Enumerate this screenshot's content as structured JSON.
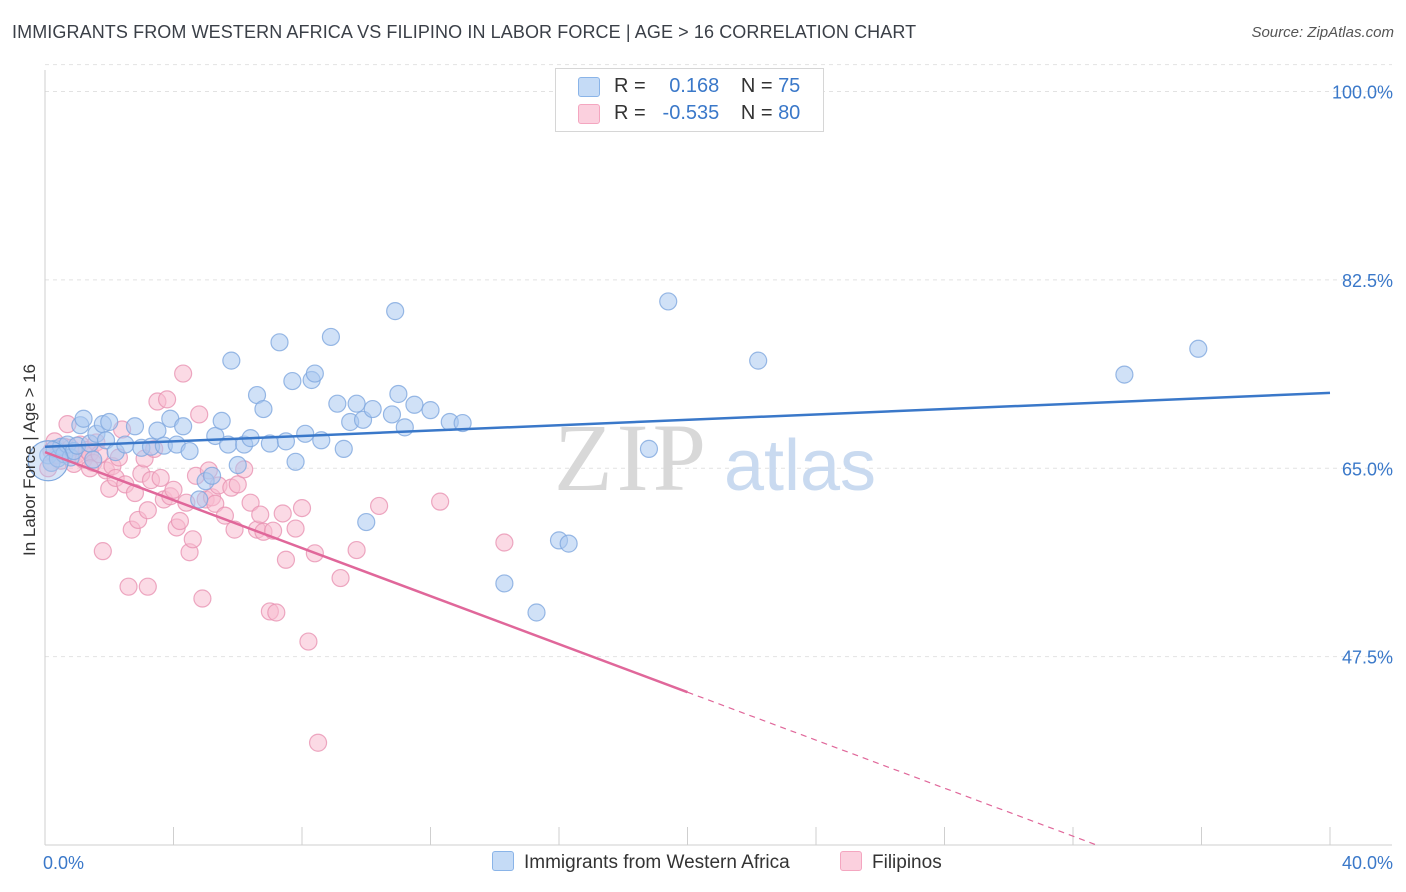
{
  "header": {
    "title": "IMMIGRANTS FROM WESTERN AFRICA VS FILIPINO IN LABOR FORCE | AGE > 16 CORRELATION CHART",
    "source": "Source: ZipAtlas.com"
  },
  "watermark": {
    "zip": "ZIP",
    "atlas": "atlas"
  },
  "legend_top": [
    {
      "r_label": "R =",
      "r_value": "0.168",
      "n_label": "N =",
      "n_value": "75",
      "color": "#8ab4e8"
    },
    {
      "r_label": "R =",
      "r_value": "-0.535",
      "n_label": "N =",
      "n_value": "80",
      "color": "#f4a6c0"
    }
  ],
  "colors": {
    "blue": "#3a78c9",
    "pink": "#e0679a",
    "blue_fill": "#aac8f0",
    "pink_fill": "#f8bcd0"
  },
  "chart_data": {
    "type": "scatter",
    "title": "IMMIGRANTS FROM WESTERN AFRICA VS FILIPINO IN LABOR FORCE | AGE > 16 CORRELATION CHART",
    "xlabel": "",
    "ylabel": "In Labor Force | Age > 16",
    "xlim": [
      0,
      40
    ],
    "ylim": [
      30,
      102
    ],
    "x_tick_labels": [
      "0.0%",
      "40.0%"
    ],
    "y_ticks": [
      100,
      82.5,
      65,
      47.5
    ],
    "y_tick_labels": [
      "100.0%",
      "82.5%",
      "65.0%",
      "47.5%"
    ],
    "grid": true,
    "legend_placement": "top-center",
    "series": [
      {
        "name": "Immigrants from Western Africa",
        "color": "#3a78c9",
        "points": [
          [
            0.1,
            66.2
          ],
          [
            0.2,
            65.5
          ],
          [
            0.3,
            66.8
          ],
          [
            0.4,
            65.9
          ],
          [
            0.5,
            67.0
          ],
          [
            0.6,
            66.3
          ],
          [
            0.7,
            67.2
          ],
          [
            0.8,
            66.0
          ],
          [
            0.9,
            66.6
          ],
          [
            1.0,
            67.1
          ],
          [
            1.1,
            69.0
          ],
          [
            1.2,
            69.6
          ],
          [
            1.4,
            67.3
          ],
          [
            1.5,
            65.8
          ],
          [
            1.6,
            68.2
          ],
          [
            1.8,
            69.1
          ],
          [
            1.9,
            67.6
          ],
          [
            2.0,
            69.3
          ],
          [
            2.2,
            66.5
          ],
          [
            2.5,
            67.2
          ],
          [
            2.8,
            68.9
          ],
          [
            3.0,
            66.9
          ],
          [
            3.3,
            67.0
          ],
          [
            3.5,
            68.5
          ],
          [
            3.7,
            67.1
          ],
          [
            3.9,
            69.6
          ],
          [
            4.1,
            67.2
          ],
          [
            4.3,
            68.9
          ],
          [
            4.5,
            66.6
          ],
          [
            4.8,
            62.1
          ],
          [
            5.0,
            63.8
          ],
          [
            5.2,
            64.3
          ],
          [
            5.3,
            68.0
          ],
          [
            5.5,
            69.4
          ],
          [
            5.7,
            67.2
          ],
          [
            5.8,
            75.0
          ],
          [
            6.0,
            65.3
          ],
          [
            6.2,
            67.2
          ],
          [
            6.4,
            67.8
          ],
          [
            6.6,
            71.8
          ],
          [
            6.8,
            70.5
          ],
          [
            7.0,
            67.3
          ],
          [
            7.3,
            76.7
          ],
          [
            7.5,
            67.5
          ],
          [
            7.7,
            73.1
          ],
          [
            7.8,
            65.6
          ],
          [
            8.1,
            68.2
          ],
          [
            8.3,
            73.2
          ],
          [
            8.4,
            73.8
          ],
          [
            8.6,
            67.6
          ],
          [
            8.9,
            77.2
          ],
          [
            9.1,
            71.0
          ],
          [
            9.3,
            66.8
          ],
          [
            9.5,
            69.3
          ],
          [
            9.7,
            71.0
          ],
          [
            9.9,
            69.5
          ],
          [
            10.0,
            60.0
          ],
          [
            10.2,
            70.5
          ],
          [
            10.8,
            70.0
          ],
          [
            10.9,
            79.6
          ],
          [
            11.0,
            71.9
          ],
          [
            11.2,
            68.8
          ],
          [
            11.5,
            70.9
          ],
          [
            12.0,
            70.4
          ],
          [
            12.6,
            69.3
          ],
          [
            13.0,
            69.2
          ],
          [
            14.3,
            54.3
          ],
          [
            15.3,
            51.6
          ],
          [
            16.0,
            58.3
          ],
          [
            16.3,
            58.0
          ],
          [
            18.8,
            66.8
          ],
          [
            19.4,
            80.5
          ],
          [
            22.2,
            75.0
          ],
          [
            33.6,
            73.7
          ],
          [
            35.9,
            76.1
          ]
        ],
        "trend": {
          "x": [
            0,
            40
          ],
          "y": [
            67.0,
            72.0
          ]
        }
      },
      {
        "name": "Filipinos",
        "color": "#e0679a",
        "points": [
          [
            0.1,
            65.0
          ],
          [
            0.2,
            66.6
          ],
          [
            0.3,
            67.5
          ],
          [
            0.4,
            66.2
          ],
          [
            0.5,
            65.7
          ],
          [
            0.6,
            67.0
          ],
          [
            0.7,
            69.1
          ],
          [
            0.8,
            66.9
          ],
          [
            0.9,
            65.4
          ],
          [
            1.0,
            66.3
          ],
          [
            1.1,
            67.2
          ],
          [
            1.2,
            65.8
          ],
          [
            1.3,
            66.7
          ],
          [
            1.4,
            66.4
          ],
          [
            1.5,
            65.5
          ],
          [
            1.6,
            67.4
          ],
          [
            1.7,
            66.3
          ],
          [
            1.8,
            57.3
          ],
          [
            1.9,
            64.8
          ],
          [
            2.0,
            63.1
          ],
          [
            2.1,
            65.2
          ],
          [
            2.2,
            64.1
          ],
          [
            2.3,
            66.0
          ],
          [
            2.4,
            68.6
          ],
          [
            2.5,
            63.5
          ],
          [
            2.6,
            54.0
          ],
          [
            2.7,
            59.3
          ],
          [
            2.8,
            62.7
          ],
          [
            2.9,
            60.2
          ],
          [
            3.0,
            64.5
          ],
          [
            3.1,
            65.9
          ],
          [
            3.2,
            54.0
          ],
          [
            3.3,
            63.9
          ],
          [
            3.4,
            66.8
          ],
          [
            3.5,
            71.2
          ],
          [
            3.6,
            64.1
          ],
          [
            3.7,
            62.1
          ],
          [
            3.8,
            71.4
          ],
          [
            3.9,
            62.4
          ],
          [
            4.0,
            63.0
          ],
          [
            4.1,
            59.5
          ],
          [
            4.2,
            60.1
          ],
          [
            4.3,
            73.8
          ],
          [
            4.4,
            61.8
          ],
          [
            4.5,
            57.2
          ],
          [
            4.6,
            58.4
          ],
          [
            4.7,
            64.3
          ],
          [
            4.8,
            70.0
          ],
          [
            4.9,
            52.9
          ],
          [
            5.0,
            62.1
          ],
          [
            5.1,
            64.8
          ],
          [
            5.2,
            62.3
          ],
          [
            5.3,
            61.7
          ],
          [
            5.4,
            63.4
          ],
          [
            5.6,
            60.6
          ],
          [
            5.8,
            63.2
          ],
          [
            5.9,
            59.3
          ],
          [
            6.0,
            63.5
          ],
          [
            6.2,
            64.9
          ],
          [
            6.4,
            61.8
          ],
          [
            6.6,
            59.3
          ],
          [
            6.8,
            59.1
          ],
          [
            7.0,
            51.7
          ],
          [
            7.2,
            51.6
          ],
          [
            7.4,
            60.8
          ],
          [
            7.5,
            56.5
          ],
          [
            7.8,
            59.4
          ],
          [
            8.0,
            61.3
          ],
          [
            8.2,
            48.9
          ],
          [
            8.4,
            57.1
          ],
          [
            8.5,
            39.5
          ],
          [
            9.2,
            54.8
          ],
          [
            9.7,
            57.4
          ],
          [
            10.4,
            61.5
          ],
          [
            12.3,
            61.9
          ],
          [
            14.3,
            58.1
          ],
          [
            7.1,
            59.2
          ],
          [
            6.7,
            60.7
          ],
          [
            3.2,
            61.1
          ],
          [
            1.4,
            65.0
          ]
        ],
        "trend": {
          "x": [
            0,
            20
          ],
          "y": [
            66.5,
            44.2
          ],
          "extended_to": [
            40,
            21.9
          ]
        }
      }
    ]
  },
  "bottom_legend": [
    {
      "label": "Immigrants from Western Africa"
    },
    {
      "label": "Filipinos"
    }
  ]
}
